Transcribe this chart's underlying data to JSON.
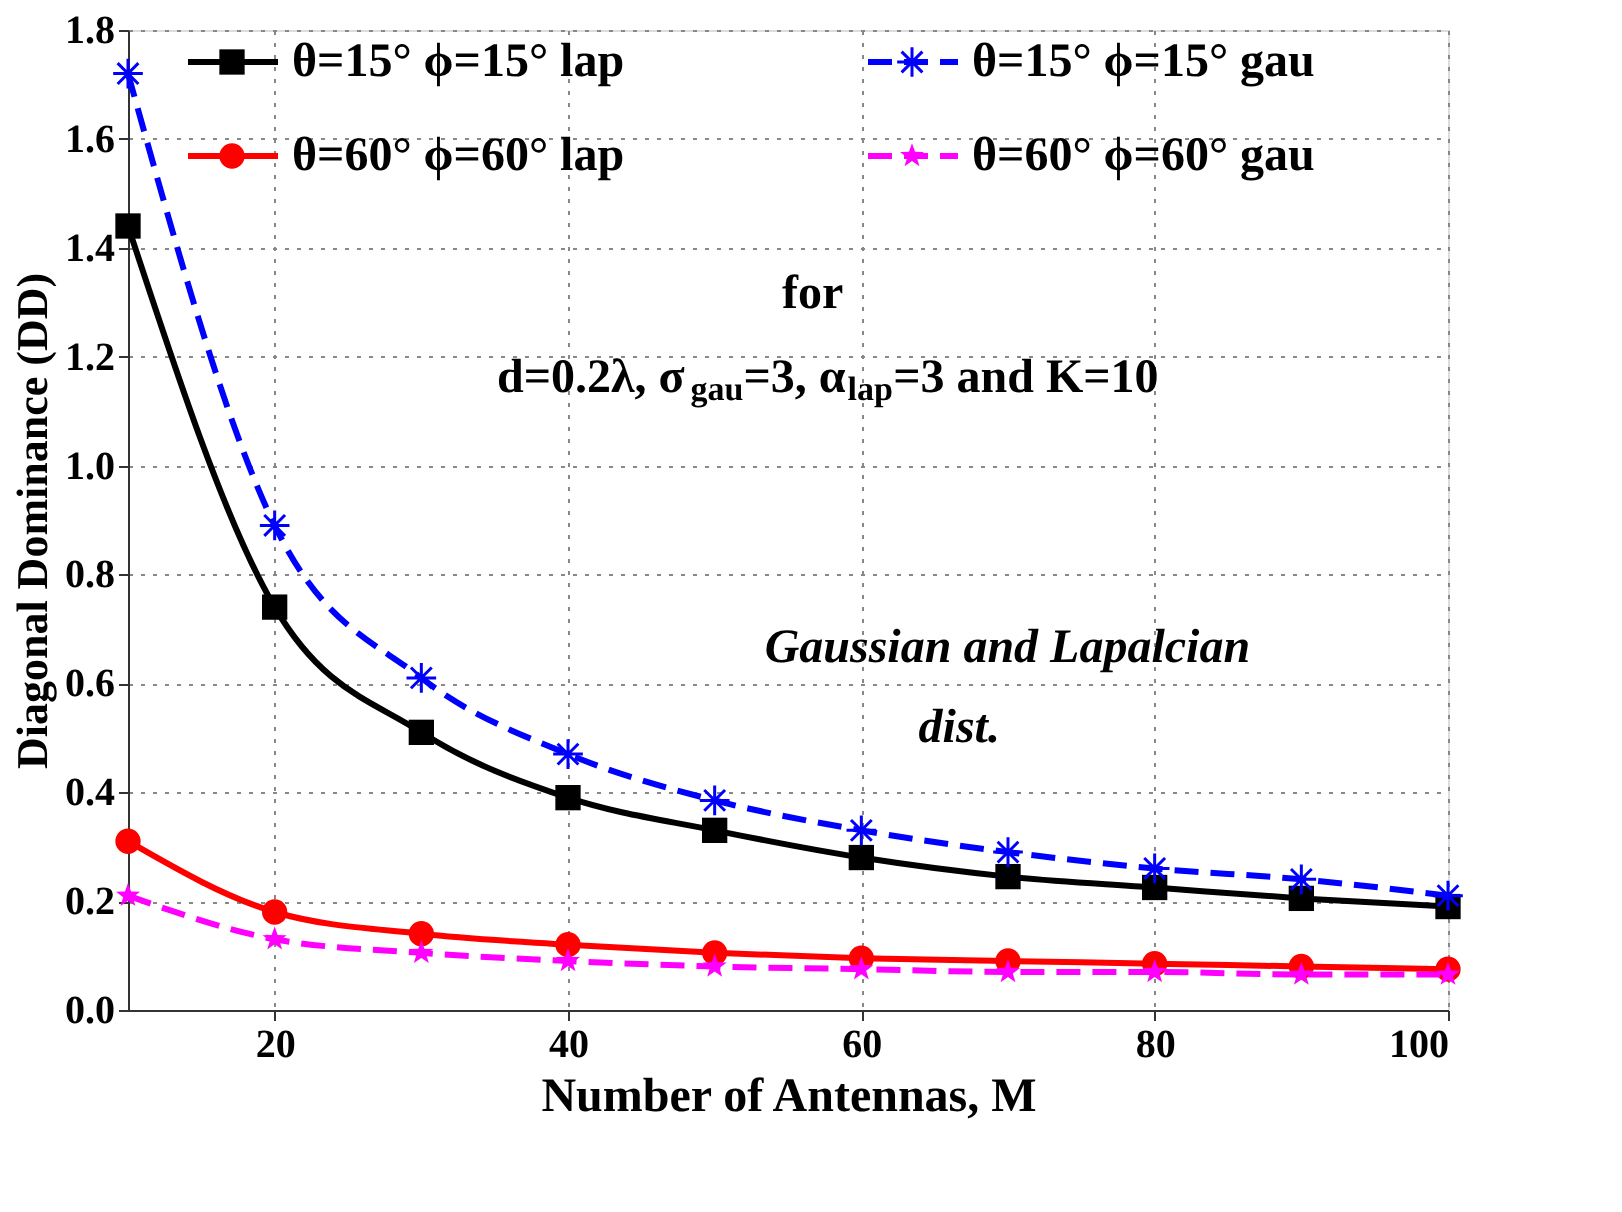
{
  "chart_data": {
    "type": "line",
    "xlabel": "Number of Antennas, M",
    "ylabel": "Diagonal Dominance (DD)",
    "x": [
      10,
      20,
      30,
      40,
      50,
      60,
      70,
      80,
      90,
      100
    ],
    "xlim": [
      10,
      100
    ],
    "xticks": [
      20,
      40,
      60,
      80,
      100
    ],
    "ylim": [
      0,
      1.8
    ],
    "yticks": [
      {
        "value": 0,
        "label": "0.0"
      },
      0.2,
      0.4,
      0.6,
      0.8,
      {
        "value": 1,
        "label": "1.0"
      },
      1.2,
      1.4,
      1.6,
      1.8
    ],
    "grid": true,
    "legend": "top",
    "series": [
      {
        "name": "θ=15° ϕ=15° lap",
        "color": "#000000",
        "marker": "square",
        "line_style": "solid",
        "values": [
          1.44,
          0.74,
          0.51,
          0.39,
          0.33,
          0.28,
          0.245,
          0.225,
          0.205,
          0.19
        ]
      },
      {
        "name": "θ=15° ϕ=15° gau",
        "color": "#0000ff",
        "marker": "cross",
        "line_style": "dashed",
        "values": [
          1.72,
          0.89,
          0.61,
          0.47,
          0.385,
          0.33,
          0.29,
          0.26,
          0.24,
          0.21
        ]
      },
      {
        "name": "θ=60° ϕ=60° lap",
        "color": "#ff0000",
        "marker": "circle",
        "line_style": "solid",
        "values": [
          0.31,
          0.18,
          0.14,
          0.12,
          0.105,
          0.095,
          0.09,
          0.085,
          0.08,
          0.075
        ]
      },
      {
        "name": "θ=60° ϕ=60° gau",
        "color": "#ff00ff",
        "marker": "star",
        "line_style": "dashed",
        "values": [
          0.21,
          0.13,
          0.105,
          0.09,
          0.08,
          0.075,
          0.07,
          0.07,
          0.065,
          0.065
        ]
      }
    ],
    "annotations": [
      "for",
      "d=0.2λ, σ$_{gau}$=3, α$_{lap}$=3  and K=10",
      "Gaussian and Lapalcian",
      "dist."
    ]
  }
}
